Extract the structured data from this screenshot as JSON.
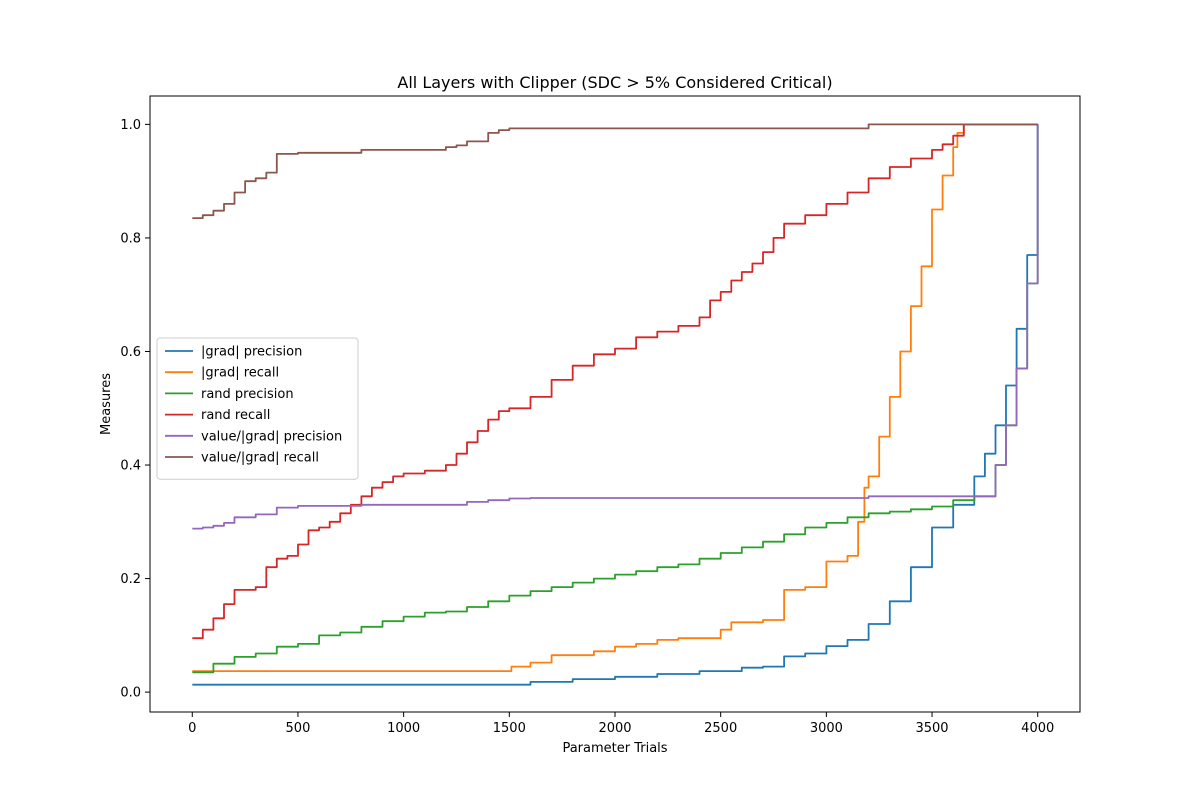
{
  "chart_data": {
    "type": "line",
    "title": "All Layers with Clipper (SDC > 5% Considered Critical)",
    "xlabel": "Parameter Trials",
    "ylabel": "Measures",
    "xlim": [
      -200,
      4200
    ],
    "ylim": [
      -0.035,
      1.05
    ],
    "xticks": [
      0,
      500,
      1000,
      1500,
      2000,
      2500,
      3000,
      3500,
      4000
    ],
    "xtick_labels": [
      "0",
      "500",
      "1000",
      "1500",
      "2000",
      "2500",
      "3000",
      "3500",
      "4000"
    ],
    "yticks": [
      0.0,
      0.2,
      0.4,
      0.6,
      0.8,
      1.0
    ],
    "ytick_labels": [
      "0.0",
      "0.2",
      "0.4",
      "0.6",
      "0.8",
      "1.0"
    ],
    "grid": false,
    "legend_position": "center-left",
    "series": [
      {
        "name": "|grad| precision",
        "color": "#1f77b4",
        "x": [
          0,
          500,
          1000,
          1500,
          1600,
          1800,
          2000,
          2200,
          2400,
          2600,
          2700,
          2800,
          2900,
          3000,
          3100,
          3200,
          3300,
          3400,
          3500,
          3600,
          3700,
          3750,
          3800,
          3850,
          3900,
          3950,
          4000
        ],
        "y": [
          0.013,
          0.013,
          0.013,
          0.013,
          0.018,
          0.023,
          0.027,
          0.032,
          0.037,
          0.043,
          0.045,
          0.063,
          0.068,
          0.081,
          0.092,
          0.12,
          0.16,
          0.22,
          0.29,
          0.33,
          0.38,
          0.42,
          0.47,
          0.54,
          0.64,
          0.77,
          1.0
        ]
      },
      {
        "name": "|grad| recall",
        "color": "#ff7f0e",
        "x": [
          0,
          500,
          1000,
          1500,
          1510,
          1600,
          1700,
          1800,
          1900,
          2000,
          2100,
          2200,
          2300,
          2400,
          2500,
          2550,
          2700,
          2800,
          2900,
          3000,
          3100,
          3150,
          3180,
          3200,
          3250,
          3300,
          3350,
          3400,
          3450,
          3500,
          3550,
          3600,
          3620,
          3650,
          4000
        ],
        "y": [
          0.037,
          0.037,
          0.037,
          0.037,
          0.045,
          0.052,
          0.065,
          0.065,
          0.072,
          0.08,
          0.085,
          0.092,
          0.095,
          0.095,
          0.11,
          0.123,
          0.127,
          0.18,
          0.185,
          0.23,
          0.24,
          0.3,
          0.36,
          0.38,
          0.45,
          0.52,
          0.6,
          0.68,
          0.75,
          0.85,
          0.91,
          0.96,
          0.985,
          1.0,
          1.0
        ]
      },
      {
        "name": "rand precision",
        "color": "#2ca02c",
        "x": [
          0,
          100,
          200,
          300,
          400,
          500,
          600,
          700,
          800,
          900,
          1000,
          1100,
          1200,
          1300,
          1400,
          1500,
          1600,
          1700,
          1800,
          1900,
          2000,
          2100,
          2200,
          2300,
          2400,
          2500,
          2600,
          2700,
          2800,
          2900,
          3000,
          3100,
          3200,
          3300,
          3400,
          3500,
          3600,
          3700,
          3740,
          3800,
          3850,
          3900,
          3950,
          4000
        ],
        "y": [
          0.035,
          0.05,
          0.062,
          0.068,
          0.08,
          0.085,
          0.1,
          0.105,
          0.115,
          0.125,
          0.133,
          0.14,
          0.142,
          0.15,
          0.16,
          0.17,
          0.178,
          0.185,
          0.193,
          0.2,
          0.207,
          0.213,
          0.22,
          0.225,
          0.235,
          0.245,
          0.255,
          0.265,
          0.278,
          0.29,
          0.298,
          0.308,
          0.315,
          0.318,
          0.322,
          0.327,
          0.338,
          0.345,
          0.345,
          0.4,
          0.47,
          0.57,
          0.72,
          1.0
        ]
      },
      {
        "name": "rand recall",
        "color": "#d62728",
        "x": [
          0,
          50,
          100,
          150,
          200,
          300,
          350,
          400,
          450,
          500,
          550,
          600,
          650,
          700,
          750,
          800,
          850,
          900,
          950,
          1000,
          1100,
          1200,
          1250,
          1300,
          1350,
          1400,
          1450,
          1500,
          1600,
          1700,
          1800,
          1900,
          2000,
          2100,
          2200,
          2300,
          2400,
          2450,
          2500,
          2550,
          2600,
          2650,
          2700,
          2750,
          2800,
          2900,
          3000,
          3100,
          3200,
          3300,
          3400,
          3500,
          3550,
          3600,
          3650,
          4000
        ],
        "y": [
          0.095,
          0.11,
          0.13,
          0.155,
          0.18,
          0.185,
          0.22,
          0.235,
          0.24,
          0.26,
          0.285,
          0.29,
          0.3,
          0.315,
          0.33,
          0.345,
          0.36,
          0.37,
          0.38,
          0.385,
          0.39,
          0.4,
          0.42,
          0.44,
          0.46,
          0.48,
          0.495,
          0.5,
          0.52,
          0.55,
          0.575,
          0.595,
          0.605,
          0.625,
          0.635,
          0.645,
          0.66,
          0.69,
          0.705,
          0.725,
          0.74,
          0.755,
          0.775,
          0.8,
          0.825,
          0.84,
          0.86,
          0.88,
          0.905,
          0.925,
          0.94,
          0.955,
          0.965,
          0.98,
          1.0,
          1.0
        ]
      },
      {
        "name": "value/|grad| precision",
        "color": "#9467bd",
        "x": [
          0,
          50,
          100,
          150,
          200,
          300,
          400,
          500,
          600,
          700,
          800,
          900,
          1000,
          1200,
          1300,
          1400,
          1500,
          1600,
          2000,
          2500,
          3000,
          3200,
          3500,
          3740,
          3800,
          3850,
          3900,
          3950,
          4000
        ],
        "y": [
          0.288,
          0.29,
          0.293,
          0.298,
          0.308,
          0.313,
          0.325,
          0.328,
          0.328,
          0.328,
          0.33,
          0.33,
          0.33,
          0.33,
          0.335,
          0.338,
          0.341,
          0.342,
          0.342,
          0.342,
          0.342,
          0.345,
          0.345,
          0.345,
          0.4,
          0.47,
          0.57,
          0.72,
          1.0
        ]
      },
      {
        "name": "value/|grad| recall",
        "color": "#8c564b",
        "x": [
          0,
          50,
          100,
          150,
          200,
          250,
          300,
          350,
          400,
          500,
          600,
          700,
          800,
          900,
          1000,
          1100,
          1200,
          1250,
          1300,
          1400,
          1450,
          1500,
          2000,
          2500,
          3000,
          3200,
          3500,
          4000
        ],
        "y": [
          0.835,
          0.84,
          0.848,
          0.86,
          0.88,
          0.9,
          0.905,
          0.915,
          0.948,
          0.95,
          0.95,
          0.95,
          0.955,
          0.955,
          0.955,
          0.955,
          0.96,
          0.963,
          0.97,
          0.985,
          0.99,
          0.993,
          0.993,
          0.993,
          0.993,
          1.0,
          1.0,
          1.0
        ]
      }
    ]
  }
}
